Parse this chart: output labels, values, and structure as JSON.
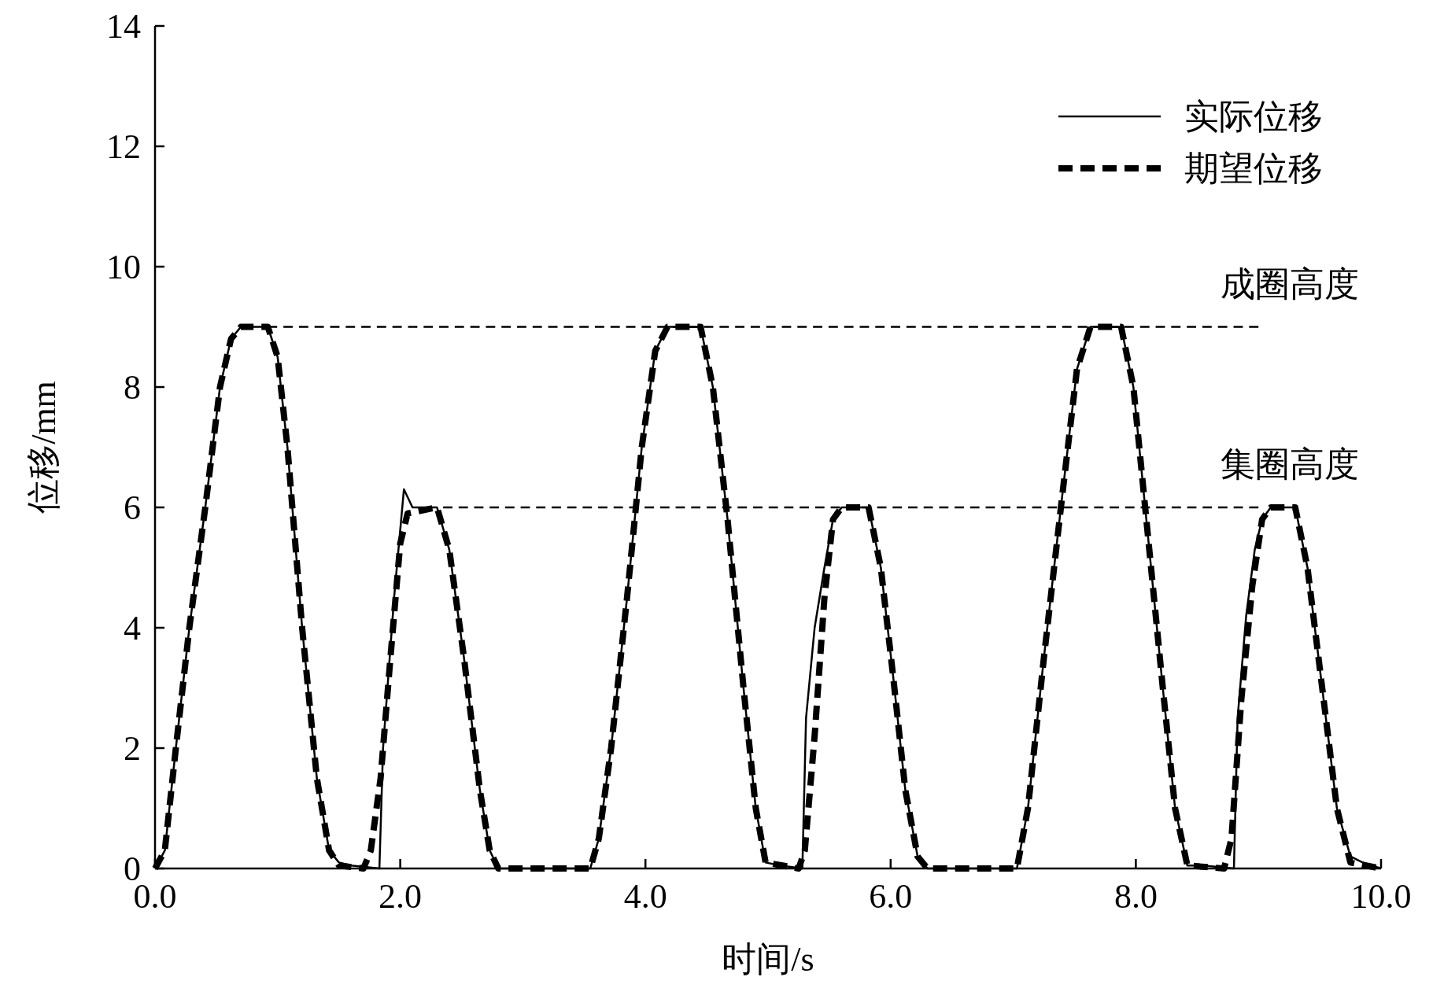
{
  "chart_data": {
    "type": "line",
    "xlabel": "时间/s",
    "ylabel": "位移/mm",
    "xlim": [
      0,
      10
    ],
    "xticks": [
      {
        "value": 0,
        "label": "0.0"
      },
      {
        "value": 2,
        "label": "2.0"
      },
      {
        "value": 4,
        "label": "4.0"
      },
      {
        "value": 6,
        "label": "6.0"
      },
      {
        "value": 8,
        "label": "8.0"
      },
      {
        "value": 10,
        "label": "10.0"
      }
    ],
    "ylim": [
      0,
      14
    ],
    "yticks": [
      0,
      2,
      4,
      6,
      8,
      10,
      12,
      14
    ],
    "grid": false,
    "legend": "top right",
    "series": [
      {
        "name": "实际位移",
        "color": "#000000",
        "line_style": "solid",
        "x": [
          0,
          0.08,
          0.17,
          0.28,
          0.41,
          0.53,
          0.62,
          0.7,
          0.92,
          1.0,
          1.08,
          1.2,
          1.32,
          1.42,
          1.5,
          1.6,
          1.83,
          1.86,
          1.95,
          2.03,
          2.1,
          2.3,
          2.4,
          2.52,
          2.65,
          2.73,
          2.8,
          3.55,
          3.62,
          3.72,
          3.85,
          3.97,
          4.08,
          4.18,
          4.45,
          4.55,
          4.67,
          4.8,
          4.9,
          4.98,
          5.1,
          5.28,
          5.31,
          5.38,
          5.46,
          5.53,
          5.6,
          5.82,
          5.92,
          6.02,
          6.12,
          6.22,
          6.3,
          7.03,
          7.12,
          7.25,
          7.4,
          7.52,
          7.63,
          7.88,
          7.98,
          8.1,
          8.22,
          8.32,
          8.42,
          8.55,
          8.8,
          8.83,
          8.9,
          8.97,
          9.03,
          9.1,
          9.3,
          9.4,
          9.52,
          9.64,
          9.75,
          9.85,
          10
        ],
        "values": [
          0,
          0.3,
          2,
          4,
          6,
          8,
          8.8,
          9,
          9,
          8.5,
          7,
          4,
          1.5,
          0.3,
          0.1,
          0.05,
          0,
          2,
          4.5,
          6.3,
          6,
          6,
          5.3,
          3.5,
          1.3,
          0.3,
          0,
          0,
          0.5,
          2,
          4.5,
          7,
          8.6,
          9,
          9,
          8,
          5.8,
          3,
          1,
          0.1,
          0.05,
          0,
          2.5,
          4,
          5,
          5.8,
          6,
          6,
          5,
          3.2,
          1.3,
          0.2,
          0,
          0,
          1,
          3.5,
          6.2,
          8.3,
          9,
          9,
          8,
          5.5,
          3,
          1,
          0.05,
          0.05,
          0,
          2.5,
          4.2,
          5.3,
          5.8,
          6,
          6,
          5,
          3,
          1,
          0.2,
          0.1,
          0
        ]
      },
      {
        "name": "期望位移",
        "color": "#000000",
        "line_style": "dashed",
        "x": [
          0,
          0.08,
          0.17,
          0.28,
          0.41,
          0.53,
          0.62,
          0.7,
          0.92,
          1.0,
          1.08,
          1.2,
          1.32,
          1.42,
          1.5,
          1.7,
          1.76,
          1.84,
          1.92,
          2.0,
          2.06,
          2.3,
          2.4,
          2.52,
          2.65,
          2.73,
          2.8,
          3.55,
          3.62,
          3.72,
          3.85,
          3.97,
          4.08,
          4.18,
          4.45,
          4.55,
          4.67,
          4.8,
          4.9,
          4.98,
          5.25,
          5.3,
          5.38,
          5.46,
          5.53,
          5.6,
          5.82,
          5.92,
          6.02,
          6.12,
          6.22,
          6.3,
          7.03,
          7.12,
          7.25,
          7.4,
          7.52,
          7.63,
          7.88,
          7.98,
          8.1,
          8.22,
          8.32,
          8.42,
          8.72,
          8.78,
          8.86,
          8.95,
          9.03,
          9.1,
          9.3,
          9.4,
          9.52,
          9.64,
          9.75,
          10
        ],
        "values": [
          0,
          0.3,
          2,
          4,
          6,
          8,
          8.8,
          9,
          9,
          8.5,
          7,
          4,
          1.5,
          0.3,
          0.05,
          0,
          0.3,
          1.5,
          3.5,
          5.4,
          5.9,
          6,
          5.3,
          3.5,
          1.3,
          0.3,
          0,
          0,
          0.5,
          2,
          4.5,
          7,
          8.6,
          9,
          9,
          8,
          5.8,
          3,
          1,
          0.1,
          0,
          0.3,
          2.2,
          4.5,
          5.8,
          6,
          6,
          5,
          3.2,
          1.3,
          0.2,
          0,
          0,
          1,
          3.5,
          6.2,
          8.3,
          9,
          9,
          8,
          5.5,
          3,
          1,
          0.05,
          0,
          0.5,
          2.8,
          4.7,
          5.8,
          6,
          6,
          5,
          3,
          1,
          0.1,
          0
        ]
      },
      {
        "color": "#000000",
        "line_style": "dotted",
        "x": [
          0.92,
          9.0
        ],
        "values": [
          9,
          9
        ]
      },
      {
        "color": "#000000",
        "line_style": "dotted",
        "x": [
          2.35,
          9.0
        ],
        "values": [
          6,
          6
        ]
      }
    ],
    "annotations": [
      "成圈高度",
      "集圈高度"
    ]
  }
}
